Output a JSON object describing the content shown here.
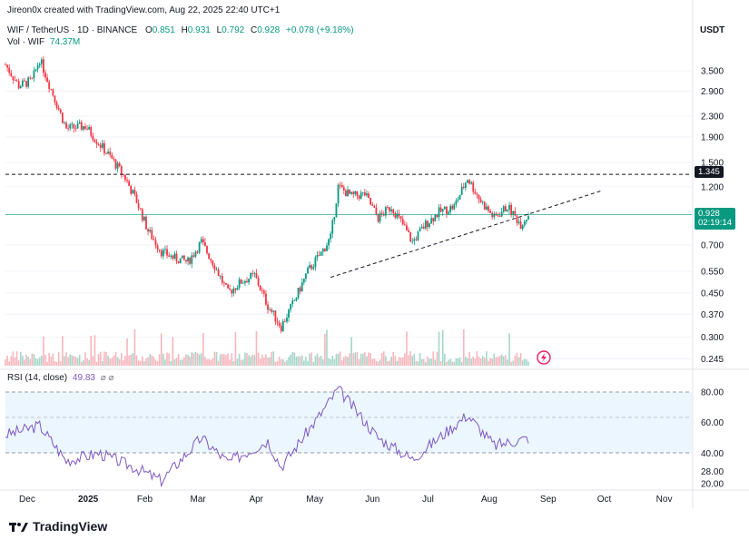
{
  "header": {
    "credit": "Jireon0x created with TradingView.com, Aug 22, 2025 22:40 UTC+1",
    "symbol": "WIF / TetherUS · 1D · BINANCE",
    "o_label": "O",
    "o_val": "0.851",
    "h_label": "H",
    "h_val": "0.931",
    "l_label": "L",
    "l_val": "0.792",
    "c_label": "C",
    "c_val": "0.928",
    "change": "+0.078 (+9.18%)",
    "vol_label": "Vol · WIF",
    "vol_val": "74.37M",
    "currency": "USDT"
  },
  "rsi": {
    "label": "RSI (14, close)",
    "value": "49.83",
    "icons": [
      "eye-off-icon",
      "eye-off-icon"
    ]
  },
  "badges": {
    "resistance": "1.345",
    "last_price": "0.928",
    "countdown": "02:19:14"
  },
  "brand": {
    "logo_text": "TradingView"
  },
  "colors": {
    "up": "#089981",
    "down": "#f23645",
    "rsi_line": "#7e57c2",
    "rsi_band": "#e3f2fd",
    "trend_line": "#131722",
    "price_line": "#089981"
  },
  "chart_data": {
    "type": "candlestick",
    "interval": "1D",
    "y_scale": "log",
    "price_ticks": [
      "3.500",
      "2.900",
      "2.300",
      "1.900",
      "1.500",
      "1.200",
      "0.700",
      "0.550",
      "0.450",
      "0.370",
      "0.300",
      "0.245"
    ],
    "rsi_ticks": [
      "80.00",
      "60.00",
      "40.00",
      "28.00",
      "20.00"
    ],
    "x_ticks": [
      "Dec",
      "2025",
      "Feb",
      "Mar",
      "Apr",
      "May",
      "Jun",
      "Jul",
      "Aug",
      "Sep",
      "Oct",
      "Nov"
    ],
    "price_path": [
      {
        "date": "2024-11-20",
        "price": 3.7
      },
      {
        "date": "2024-11-27",
        "price": 3.05
      },
      {
        "date": "2024-12-04",
        "price": 3.2
      },
      {
        "date": "2024-12-08",
        "price": 3.9
      },
      {
        "date": "2024-12-14",
        "price": 2.95
      },
      {
        "date": "2024-12-22",
        "price": 2.05
      },
      {
        "date": "2025-01-01",
        "price": 2.1
      },
      {
        "date": "2025-01-08",
        "price": 1.8
      },
      {
        "date": "2025-01-15",
        "price": 1.55
      },
      {
        "date": "2025-01-22",
        "price": 1.3
      },
      {
        "date": "2025-01-28",
        "price": 1.05
      },
      {
        "date": "2025-02-03",
        "price": 0.8
      },
      {
        "date": "2025-02-10",
        "price": 0.66
      },
      {
        "date": "2025-02-17",
        "price": 0.62
      },
      {
        "date": "2025-02-24",
        "price": 0.6
      },
      {
        "date": "2025-03-03",
        "price": 0.72
      },
      {
        "date": "2025-03-10",
        "price": 0.58
      },
      {
        "date": "2025-03-17",
        "price": 0.45
      },
      {
        "date": "2025-03-24",
        "price": 0.5
      },
      {
        "date": "2025-03-31",
        "price": 0.53
      },
      {
        "date": "2025-04-07",
        "price": 0.4
      },
      {
        "date": "2025-04-14",
        "price": 0.33
      },
      {
        "date": "2025-04-21",
        "price": 0.42
      },
      {
        "date": "2025-04-28",
        "price": 0.55
      },
      {
        "date": "2025-05-05",
        "price": 0.65
      },
      {
        "date": "2025-05-10",
        "price": 0.75
      },
      {
        "date": "2025-05-14",
        "price": 1.2
      },
      {
        "date": "2025-05-21",
        "price": 1.1
      },
      {
        "date": "2025-05-28",
        "price": 1.12
      },
      {
        "date": "2025-06-04",
        "price": 0.9
      },
      {
        "date": "2025-06-11",
        "price": 1.0
      },
      {
        "date": "2025-06-18",
        "price": 0.82
      },
      {
        "date": "2025-06-22",
        "price": 0.72
      },
      {
        "date": "2025-06-29",
        "price": 0.85
      },
      {
        "date": "2025-07-06",
        "price": 0.95
      },
      {
        "date": "2025-07-14",
        "price": 1.0
      },
      {
        "date": "2025-07-21",
        "price": 1.3
      },
      {
        "date": "2025-07-28",
        "price": 1.05
      },
      {
        "date": "2025-08-04",
        "price": 0.9
      },
      {
        "date": "2025-08-11",
        "price": 1.0
      },
      {
        "date": "2025-08-18",
        "price": 0.85
      },
      {
        "date": "2025-08-22",
        "price": 0.928
      }
    ],
    "rsi_path": [
      {
        "date": "2024-11-20",
        "value": 52
      },
      {
        "date": "2024-12-08",
        "value": 58
      },
      {
        "date": "2024-12-22",
        "value": 35
      },
      {
        "date": "2025-01-08",
        "value": 40
      },
      {
        "date": "2025-01-28",
        "value": 30
      },
      {
        "date": "2025-02-10",
        "value": 22
      },
      {
        "date": "2025-03-03",
        "value": 50
      },
      {
        "date": "2025-03-17",
        "value": 34
      },
      {
        "date": "2025-04-07",
        "value": 48
      },
      {
        "date": "2025-04-14",
        "value": 31
      },
      {
        "date": "2025-05-05",
        "value": 66
      },
      {
        "date": "2025-05-14",
        "value": 82
      },
      {
        "date": "2025-06-04",
        "value": 50
      },
      {
        "date": "2025-06-22",
        "value": 36
      },
      {
        "date": "2025-07-21",
        "value": 65
      },
      {
        "date": "2025-08-04",
        "value": 45
      },
      {
        "date": "2025-08-22",
        "value": 49.83
      }
    ],
    "resistance_level": 1.345,
    "trendline": {
      "start": {
        "date": "2025-05-10",
        "price": 0.52
      },
      "end": {
        "date": "2025-09-30",
        "price": 1.16
      }
    }
  }
}
